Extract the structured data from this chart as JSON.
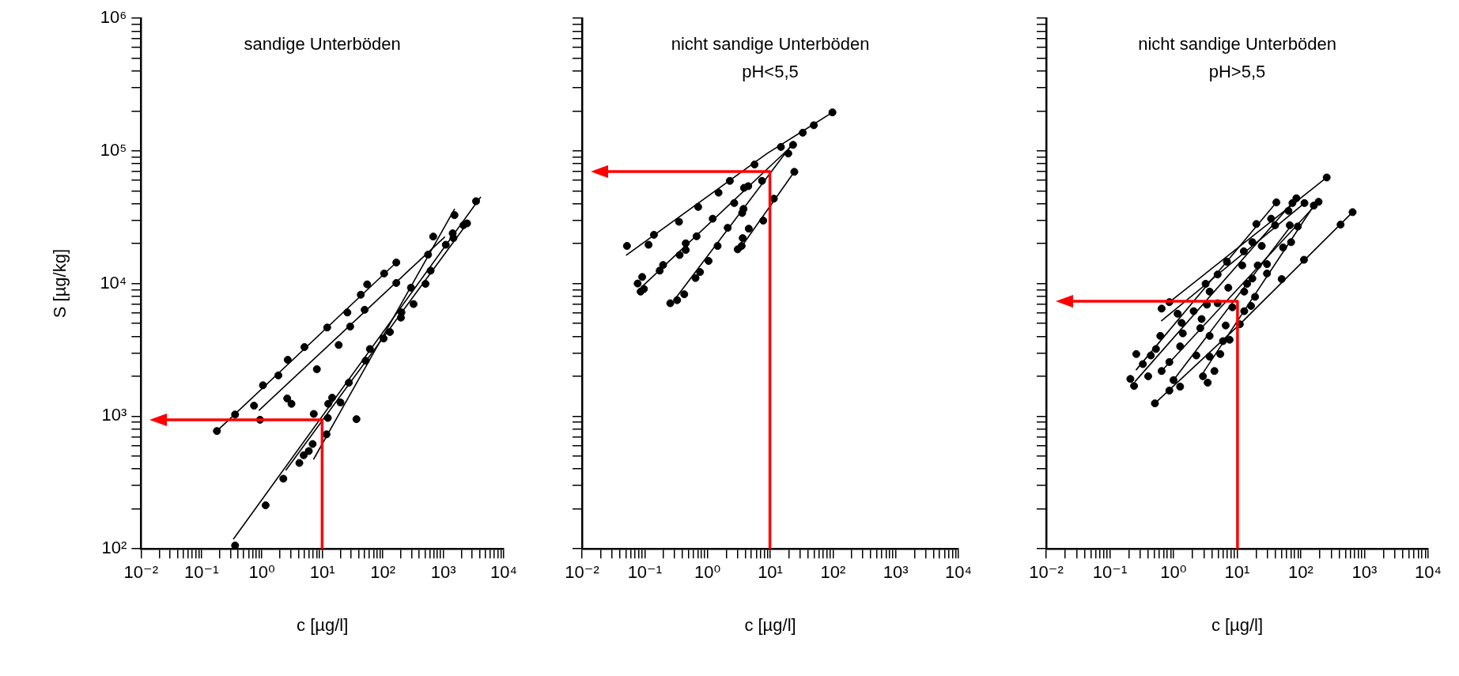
{
  "chart_data": [
    {
      "type": "scatter",
      "title": "sandige Unterböden",
      "xlabel": "c [µg/l]",
      "ylabel": "S [µg/kg]",
      "log": "xy",
      "marker": "circle",
      "xlim": [
        0.01,
        10000
      ],
      "ylim": [
        100,
        1000000
      ],
      "xticks": [
        {
          "value": 0.01,
          "label": "10⁻²"
        },
        {
          "value": 0.02,
          "label": null
        },
        {
          "value": 0.03,
          "label": null
        },
        {
          "value": 0.04,
          "label": null
        },
        {
          "value": 0.05,
          "label": null
        },
        {
          "value": 0.06,
          "label": null
        },
        {
          "value": 0.07,
          "label": null
        },
        {
          "value": 0.08,
          "label": null
        },
        {
          "value": 0.09,
          "label": null
        },
        {
          "value": 0.1,
          "label": "10⁻¹"
        },
        {
          "value": 0.2,
          "label": null
        },
        {
          "value": 0.3,
          "label": null
        },
        {
          "value": 0.4,
          "label": null
        },
        {
          "value": 0.5,
          "label": null
        },
        {
          "value": 0.6,
          "label": null
        },
        {
          "value": 0.7,
          "label": null
        },
        {
          "value": 0.8,
          "label": null
        },
        {
          "value": 0.9,
          "label": null
        },
        {
          "value": 1,
          "label": "10⁰"
        },
        {
          "value": 2,
          "label": null
        },
        {
          "value": 3,
          "label": null
        },
        {
          "value": 4,
          "label": null
        },
        {
          "value": 5,
          "label": null
        },
        {
          "value": 6,
          "label": null
        },
        {
          "value": 7,
          "label": null
        },
        {
          "value": 8,
          "label": null
        },
        {
          "value": 9,
          "label": null
        },
        {
          "value": 10,
          "label": "10¹"
        },
        {
          "value": 20,
          "label": null
        },
        {
          "value": 30,
          "label": null
        },
        {
          "value": 40,
          "label": null
        },
        {
          "value": 50,
          "label": null
        },
        {
          "value": 60,
          "label": null
        },
        {
          "value": 70,
          "label": null
        },
        {
          "value": 80,
          "label": null
        },
        {
          "value": 90,
          "label": null
        },
        {
          "value": 100,
          "label": "10²"
        },
        {
          "value": 200,
          "label": null
        },
        {
          "value": 300,
          "label": null
        },
        {
          "value": 400,
          "label": null
        },
        {
          "value": 500,
          "label": null
        },
        {
          "value": 600,
          "label": null
        },
        {
          "value": 700,
          "label": null
        },
        {
          "value": 800,
          "label": null
        },
        {
          "value": 900,
          "label": null
        },
        {
          "value": 1000,
          "label": "10³"
        },
        {
          "value": 2000,
          "label": null
        },
        {
          "value": 3000,
          "label": null
        },
        {
          "value": 4000,
          "label": null
        },
        {
          "value": 5000,
          "label": null
        },
        {
          "value": 6000,
          "label": null
        },
        {
          "value": 7000,
          "label": null
        },
        {
          "value": 8000,
          "label": null
        },
        {
          "value": 9000,
          "label": null
        },
        {
          "value": 10000,
          "label": "10⁴"
        }
      ],
      "yticks": [
        {
          "value": 100,
          "label": "10²"
        },
        {
          "value": 200,
          "label": null
        },
        {
          "value": 300,
          "label": null
        },
        {
          "value": 400,
          "label": null
        },
        {
          "value": 500,
          "label": null
        },
        {
          "value": 600,
          "label": null
        },
        {
          "value": 700,
          "label": null
        },
        {
          "value": 800,
          "label": null
        },
        {
          "value": 900,
          "label": null
        },
        {
          "value": 1000,
          "label": "10³"
        },
        {
          "value": 2000,
          "label": null
        },
        {
          "value": 3000,
          "label": null
        },
        {
          "value": 4000,
          "label": null
        },
        {
          "value": 5000,
          "label": null
        },
        {
          "value": 6000,
          "label": null
        },
        {
          "value": 7000,
          "label": null
        },
        {
          "value": 8000,
          "label": null
        },
        {
          "value": 9000,
          "label": null
        },
        {
          "value": 10000,
          "label": "10⁴"
        },
        {
          "value": 20000,
          "label": null
        },
        {
          "value": 30000,
          "label": null
        },
        {
          "value": 40000,
          "label": null
        },
        {
          "value": 50000,
          "label": null
        },
        {
          "value": 60000,
          "label": null
        },
        {
          "value": 70000,
          "label": null
        },
        {
          "value": 80000,
          "label": null
        },
        {
          "value": 90000,
          "label": null
        },
        {
          "value": 100000,
          "label": "10⁵"
        },
        {
          "value": 200000,
          "label": null
        },
        {
          "value": 300000,
          "label": null
        },
        {
          "value": 400000,
          "label": null
        },
        {
          "value": 500000,
          "label": null
        },
        {
          "value": 600000,
          "label": null
        },
        {
          "value": 700000,
          "label": null
        },
        {
          "value": 800000,
          "label": null
        },
        {
          "value": 900000,
          "label": null
        },
        {
          "value": 1000000,
          "label": "10⁶"
        }
      ],
      "series": [
        {
          "type": "scatter",
          "color": "#000000",
          "x": [
            0.18,
            0.36,
            0.74,
            0.93,
            1.04,
            1.87,
            2.67,
            2.62,
            3.08,
            5.05,
            8.1,
            7.2,
            12,
            18.6,
            25.9,
            28.8,
            43.2,
            55,
            50,
            105,
            167,
            167,
            560,
            292,
            322,
            508,
            617,
            203,
            199,
            131,
            103,
            61,
            52,
            27.4,
            12.3,
            14.5,
            12.5,
            19.9,
            36.6,
            11.7,
            6.9,
            5.96,
            4.91,
            4.16,
            2.26,
            1.15,
            0.36,
            1100,
            680,
            1470,
            1530,
            2150,
            2470,
            1430,
            3480
          ],
          "values": [
            773,
            1030,
            1200,
            940,
            1710,
            2030,
            2660,
            1360,
            1240,
            3320,
            2260,
            1040,
            4660,
            3440,
            6050,
            4740,
            8230,
            9860,
            6340,
            11900,
            14400,
            10100,
            16500,
            9300,
            7000,
            9950,
            12500,
            6060,
            5530,
            4310,
            3850,
            3210,
            2620,
            1790,
            970,
            1380,
            1240,
            1270,
            950,
            730,
            617,
            546,
            508,
            444,
            338,
            213,
            106,
            19600,
            22600,
            22000,
            32800,
            27500,
            28400,
            23900,
            41700
          ]
        },
        {
          "type": "line",
          "marker": "none",
          "color": "#000000",
          "x": [
            0.18,
            167
          ],
          "values": [
            773,
            14400
          ]
        },
        {
          "type": "line",
          "marker": "none",
          "color": "#000000",
          "x": [
            0.9,
            1050
          ],
          "values": [
            1110,
            22400
          ]
        },
        {
          "type": "line",
          "marker": "none",
          "color": "#000000",
          "x": [
            0.34,
            4120
          ],
          "values": [
            119,
            44700
          ]
        },
        {
          "type": "line",
          "marker": "none",
          "color": "#000000",
          "x": [
            2.5,
            2550
          ],
          "values": [
            393,
            28900
          ]
        },
        {
          "type": "line",
          "marker": "none",
          "color": "#000000",
          "x": [
            7.2,
            1530
          ],
          "values": [
            476,
            36300
          ]
        }
      ]
    },
    {
      "type": "scatter",
      "title": "nicht sandige Unterböden",
      "subtitle": "pH<5,5",
      "xlabel": "c [µg/l]",
      "log": "xy",
      "marker": "circle",
      "tick_labels": "x",
      "xlim": [
        0.01,
        10000
      ],
      "ylim": [
        100,
        1000000
      ],
      "xticks": [
        {
          "value": 0.01,
          "label": "10⁻²"
        },
        {
          "value": 0.02,
          "label": null
        },
        {
          "value": 0.03,
          "label": null
        },
        {
          "value": 0.04,
          "label": null
        },
        {
          "value": 0.05,
          "label": null
        },
        {
          "value": 0.06,
          "label": null
        },
        {
          "value": 0.07,
          "label": null
        },
        {
          "value": 0.08,
          "label": null
        },
        {
          "value": 0.09,
          "label": null
        },
        {
          "value": 0.1,
          "label": "10⁻¹"
        },
        {
          "value": 0.2,
          "label": null
        },
        {
          "value": 0.3,
          "label": null
        },
        {
          "value": 0.4,
          "label": null
        },
        {
          "value": 0.5,
          "label": null
        },
        {
          "value": 0.6,
          "label": null
        },
        {
          "value": 0.7,
          "label": null
        },
        {
          "value": 0.8,
          "label": null
        },
        {
          "value": 0.9,
          "label": null
        },
        {
          "value": 1,
          "label": "10⁰"
        },
        {
          "value": 2,
          "label": null
        },
        {
          "value": 3,
          "label": null
        },
        {
          "value": 4,
          "label": null
        },
        {
          "value": 5,
          "label": null
        },
        {
          "value": 6,
          "label": null
        },
        {
          "value": 7,
          "label": null
        },
        {
          "value": 8,
          "label": null
        },
        {
          "value": 9,
          "label": null
        },
        {
          "value": 10,
          "label": "10¹"
        },
        {
          "value": 20,
          "label": null
        },
        {
          "value": 30,
          "label": null
        },
        {
          "value": 40,
          "label": null
        },
        {
          "value": 50,
          "label": null
        },
        {
          "value": 60,
          "label": null
        },
        {
          "value": 70,
          "label": null
        },
        {
          "value": 80,
          "label": null
        },
        {
          "value": 90,
          "label": null
        },
        {
          "value": 100,
          "label": "10²"
        },
        {
          "value": 200,
          "label": null
        },
        {
          "value": 300,
          "label": null
        },
        {
          "value": 400,
          "label": null
        },
        {
          "value": 500,
          "label": null
        },
        {
          "value": 600,
          "label": null
        },
        {
          "value": 700,
          "label": null
        },
        {
          "value": 800,
          "label": null
        },
        {
          "value": 900,
          "label": null
        },
        {
          "value": 1000,
          "label": "10³"
        },
        {
          "value": 2000,
          "label": null
        },
        {
          "value": 3000,
          "label": null
        },
        {
          "value": 4000,
          "label": null
        },
        {
          "value": 5000,
          "label": null
        },
        {
          "value": 6000,
          "label": null
        },
        {
          "value": 7000,
          "label": null
        },
        {
          "value": 8000,
          "label": null
        },
        {
          "value": 9000,
          "label": null
        },
        {
          "value": 10000,
          "label": "10⁴"
        }
      ],
      "yticks": [
        {
          "value": 100,
          "label": null
        },
        {
          "value": 200,
          "label": null
        },
        {
          "value": 300,
          "label": null
        },
        {
          "value": 400,
          "label": null
        },
        {
          "value": 500,
          "label": null
        },
        {
          "value": 600,
          "label": null
        },
        {
          "value": 700,
          "label": null
        },
        {
          "value": 800,
          "label": null
        },
        {
          "value": 900,
          "label": null
        },
        {
          "value": 1000,
          "label": null
        },
        {
          "value": 2000,
          "label": null
        },
        {
          "value": 3000,
          "label": null
        },
        {
          "value": 4000,
          "label": null
        },
        {
          "value": 5000,
          "label": null
        },
        {
          "value": 6000,
          "label": null
        },
        {
          "value": 7000,
          "label": null
        },
        {
          "value": 8000,
          "label": null
        },
        {
          "value": 9000,
          "label": null
        },
        {
          "value": 10000,
          "label": null
        },
        {
          "value": 20000,
          "label": null
        },
        {
          "value": 30000,
          "label": null
        },
        {
          "value": 40000,
          "label": null
        },
        {
          "value": 50000,
          "label": null
        },
        {
          "value": 60000,
          "label": null
        },
        {
          "value": 70000,
          "label": null
        },
        {
          "value": 80000,
          "label": null
        },
        {
          "value": 90000,
          "label": null
        },
        {
          "value": 100000,
          "label": null
        },
        {
          "value": 200000,
          "label": null
        },
        {
          "value": 300000,
          "label": null
        },
        {
          "value": 400000,
          "label": null
        },
        {
          "value": 500000,
          "label": null
        },
        {
          "value": 600000,
          "label": null
        },
        {
          "value": 700000,
          "label": null
        },
        {
          "value": 800000,
          "label": null
        },
        {
          "value": 900000,
          "label": null
        },
        {
          "value": 1000000,
          "label": null
        }
      ],
      "series": [
        {
          "type": "scatter",
          "color": "#000000",
          "x": [
            0.052,
            0.115,
            0.14,
            0.351,
            0.71,
            1.5,
            2.27,
            5.62,
            14.8,
            33,
            49.5,
            98,
            0.077,
            0.091,
            0.086,
            0.097,
            0.173,
            0.196,
            0.36,
            0.45,
            0.45,
            0.67,
            1.21,
            2.67,
            3.82,
            4.46,
            7.4,
            23.1,
            19.4,
            0.255,
            0.328,
            0.426,
            0.644,
            0.76,
            1.04,
            1.45,
            2.1,
            3.57,
            3.75,
            3.03,
            3.5,
            3.64,
            4.55,
            7.74,
            11.4,
            24.2
          ],
          "values": [
            19200,
            19600,
            23300,
            29200,
            37800,
            48400,
            59400,
            78900,
            107000,
            137000,
            156000,
            195000,
            10000,
            11200,
            8690,
            9100,
            12500,
            13800,
            16400,
            20100,
            17900,
            22700,
            30800,
            40400,
            52600,
            54200,
            59400,
            111000,
            95500,
            7100,
            7490,
            8300,
            11000,
            12200,
            14800,
            19200,
            26300,
            34000,
            36500,
            18100,
            19200,
            22000,
            25900,
            29800,
            43600,
            69500
          ]
        },
        {
          "type": "line",
          "marker": "none",
          "color": "#000000",
          "x": [
            0.051,
            8.9,
            98
          ],
          "values": [
            16400,
            95500,
            195000
          ]
        },
        {
          "type": "line",
          "marker": "none",
          "color": "#000000",
          "x": [
            0.091,
            23.5
          ],
          "values": [
            9500,
            112000
          ]
        },
        {
          "type": "line",
          "marker": "none",
          "color": "#000000",
          "x": [
            0.3,
            21.3
          ],
          "values": [
            7590,
            109000
          ]
        },
        {
          "type": "line",
          "marker": "none",
          "color": "#000000",
          "x": [
            3.09,
            24.2
          ],
          "values": [
            17500,
            69500
          ]
        }
      ]
    },
    {
      "type": "scatter",
      "title": "nicht sandige Unterböden",
      "subtitle": "pH>5,5",
      "xlabel": "c [µg/l]",
      "log": "xy",
      "marker": "circle",
      "tick_labels": "x",
      "xlim": [
        0.01,
        10000
      ],
      "ylim": [
        100,
        1000000
      ],
      "xticks": [
        {
          "value": 0.01,
          "label": "10⁻²"
        },
        {
          "value": 0.02,
          "label": null
        },
        {
          "value": 0.03,
          "label": null
        },
        {
          "value": 0.04,
          "label": null
        },
        {
          "value": 0.05,
          "label": null
        },
        {
          "value": 0.06,
          "label": null
        },
        {
          "value": 0.07,
          "label": null
        },
        {
          "value": 0.08,
          "label": null
        },
        {
          "value": 0.09,
          "label": null
        },
        {
          "value": 0.1,
          "label": "10⁻¹"
        },
        {
          "value": 0.2,
          "label": null
        },
        {
          "value": 0.3,
          "label": null
        },
        {
          "value": 0.4,
          "label": null
        },
        {
          "value": 0.5,
          "label": null
        },
        {
          "value": 0.6,
          "label": null
        },
        {
          "value": 0.7,
          "label": null
        },
        {
          "value": 0.8,
          "label": null
        },
        {
          "value": 0.9,
          "label": null
        },
        {
          "value": 1,
          "label": "10⁰"
        },
        {
          "value": 2,
          "label": null
        },
        {
          "value": 3,
          "label": null
        },
        {
          "value": 4,
          "label": null
        },
        {
          "value": 5,
          "label": null
        },
        {
          "value": 6,
          "label": null
        },
        {
          "value": 7,
          "label": null
        },
        {
          "value": 8,
          "label": null
        },
        {
          "value": 9,
          "label": null
        },
        {
          "value": 10,
          "label": "10¹"
        },
        {
          "value": 20,
          "label": null
        },
        {
          "value": 30,
          "label": null
        },
        {
          "value": 40,
          "label": null
        },
        {
          "value": 50,
          "label": null
        },
        {
          "value": 60,
          "label": null
        },
        {
          "value": 70,
          "label": null
        },
        {
          "value": 80,
          "label": null
        },
        {
          "value": 90,
          "label": null
        },
        {
          "value": 100,
          "label": "10²"
        },
        {
          "value": 200,
          "label": null
        },
        {
          "value": 300,
          "label": null
        },
        {
          "value": 400,
          "label": null
        },
        {
          "value": 500,
          "label": null
        },
        {
          "value": 600,
          "label": null
        },
        {
          "value": 700,
          "label": null
        },
        {
          "value": 800,
          "label": null
        },
        {
          "value": 900,
          "label": null
        },
        {
          "value": 1000,
          "label": "10³"
        },
        {
          "value": 2000,
          "label": null
        },
        {
          "value": 3000,
          "label": null
        },
        {
          "value": 4000,
          "label": null
        },
        {
          "value": 5000,
          "label": null
        },
        {
          "value": 6000,
          "label": null
        },
        {
          "value": 7000,
          "label": null
        },
        {
          "value": 8000,
          "label": null
        },
        {
          "value": 9000,
          "label": null
        },
        {
          "value": 10000,
          "label": "10⁴"
        }
      ],
      "yticks": [
        {
          "value": 100,
          "label": null
        },
        {
          "value": 200,
          "label": null
        },
        {
          "value": 300,
          "label": null
        },
        {
          "value": 400,
          "label": null
        },
        {
          "value": 500,
          "label": null
        },
        {
          "value": 600,
          "label": null
        },
        {
          "value": 700,
          "label": null
        },
        {
          "value": 800,
          "label": null
        },
        {
          "value": 900,
          "label": null
        },
        {
          "value": 1000,
          "label": null
        },
        {
          "value": 2000,
          "label": null
        },
        {
          "value": 3000,
          "label": null
        },
        {
          "value": 4000,
          "label": null
        },
        {
          "value": 5000,
          "label": null
        },
        {
          "value": 6000,
          "label": null
        },
        {
          "value": 7000,
          "label": null
        },
        {
          "value": 8000,
          "label": null
        },
        {
          "value": 9000,
          "label": null
        },
        {
          "value": 10000,
          "label": null
        },
        {
          "value": 20000,
          "label": null
        },
        {
          "value": 30000,
          "label": null
        },
        {
          "value": 40000,
          "label": null
        },
        {
          "value": 50000,
          "label": null
        },
        {
          "value": 60000,
          "label": null
        },
        {
          "value": 70000,
          "label": null
        },
        {
          "value": 80000,
          "label": null
        },
        {
          "value": 90000,
          "label": null
        },
        {
          "value": 100000,
          "label": null
        },
        {
          "value": 200000,
          "label": null
        },
        {
          "value": 300000,
          "label": null
        },
        {
          "value": 400000,
          "label": null
        },
        {
          "value": 500000,
          "label": null
        },
        {
          "value": 600000,
          "label": null
        },
        {
          "value": 700000,
          "label": null
        },
        {
          "value": 800000,
          "label": null
        },
        {
          "value": 900000,
          "label": null
        },
        {
          "value": 1000000,
          "label": null
        }
      ],
      "series": [
        {
          "type": "scatter",
          "color": "#000000",
          "x": [
            11,
            50,
            112,
            421,
            650,
            255,
            41.3,
            85,
            114,
            190,
            73.8,
            160,
            63.8,
            34.1,
            20,
            39.4,
            67,
            89.5,
            70.3,
            17.3,
            24.3,
            12.7,
            52.6,
            6.9,
            12,
            21,
            29.4,
            29.4,
            4.93,
            17.3,
            14.3,
            3.19,
            7.25,
            3.69,
            12.9,
            19.1,
            0.86,
            0.65,
            3.35,
            4.93,
            8.4,
            16.5,
            1.16,
            2.07,
            2.76,
            12.9,
            6.6,
            1.34,
            2.63,
            1.4,
            0.62,
            3.69,
            5.98,
            7.6,
            1.27,
            0.53,
            0.44,
            0.26,
            5.43,
            2.28,
            3.69,
            0.33,
            0.86,
            0.65,
            0.4,
            0.21,
            0.24,
            1,
            1.27,
            0.86,
            2.9,
            4.39,
            3.44,
            0.51
          ],
          "values": [
            4930,
            10800,
            15100,
            27800,
            34500,
            63000,
            40900,
            43900,
            40400,
            41300,
            40400,
            38700,
            35300,
            30800,
            28100,
            27500,
            27500,
            26900,
            20500,
            20500,
            19200,
            17500,
            18700,
            14600,
            13700,
            13700,
            14000,
            11900,
            11700,
            10900,
            9950,
            9950,
            9300,
            8690,
            8690,
            7940,
            7240,
            6470,
            6930,
            7100,
            6620,
            6780,
            5920,
            6190,
            5400,
            6190,
            4830,
            5050,
            4610,
            4210,
            4030,
            4030,
            3680,
            3770,
            3360,
            3210,
            2870,
            2940,
            2940,
            2870,
            2810,
            2470,
            2560,
            2190,
            2000,
            1910,
            1690,
            1870,
            1670,
            1560,
            2000,
            2190,
            1790,
            1250
          ]
        },
        {
          "type": "line",
          "marker": "none",
          "color": "#000000",
          "x": [
            0.51,
            11,
            650
          ],
          "values": [
            1250,
            4930,
            34500
          ]
        },
        {
          "type": "line",
          "marker": "none",
          "color": "#000000",
          "x": [
            0.26,
            41.3
          ],
          "values": [
            2240,
            40900
          ]
        },
        {
          "type": "line",
          "marker": "none",
          "color": "#000000",
          "x": [
            0.25,
            85
          ],
          "values": [
            1830,
            43900
          ]
        },
        {
          "type": "line",
          "marker": "none",
          "color": "#000000",
          "x": [
            0.65,
            114
          ],
          "values": [
            5240,
            40400
          ]
        },
        {
          "type": "line",
          "marker": "none",
          "color": "#000000",
          "x": [
            0.62,
            190
          ],
          "values": [
            2140,
            41300
          ]
        },
        {
          "type": "line",
          "marker": "none",
          "color": "#000000",
          "x": [
            2.76,
            160
          ],
          "values": [
            2040,
            38700
          ]
        },
        {
          "type": "line",
          "marker": "none",
          "color": "#000000",
          "x": [
            1,
            73.8
          ],
          "values": [
            1870,
            28100
          ]
        },
        {
          "type": "line",
          "marker": "none",
          "color": "#000000",
          "x": [
            0.86,
            255
          ],
          "values": [
            7240,
            63000
          ]
        }
      ]
    }
  ]
}
